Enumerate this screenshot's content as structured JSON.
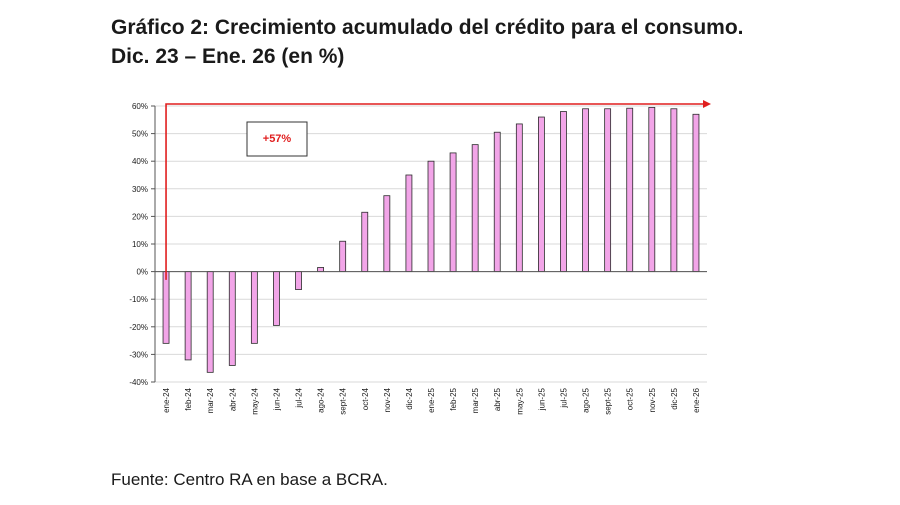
{
  "heading": {
    "line1": "Gráfico 2: Crecimiento acumulado del crédito para el consumo.",
    "line2": "Dic. 23 – Ene. 26 (en %)"
  },
  "source": "Fuente: Centro RA en base a BCRA.",
  "colors": {
    "bar_fill": "#f2a5e8",
    "bar_stroke": "#2b2b2b",
    "arrow": "#e01e1e",
    "grid": "#d9d9d9",
    "axis": "#555555"
  },
  "chart_data": {
    "type": "bar",
    "title": "",
    "xlabel": "",
    "ylabel": "",
    "ylim": [
      -40,
      60
    ],
    "yticks": [
      60,
      50,
      40,
      30,
      20,
      10,
      0,
      -10,
      -20,
      -30,
      -40
    ],
    "ytick_labels": [
      "60%",
      "50%",
      "40%",
      "30%",
      "20%",
      "10%",
      "0%",
      "-10%",
      "-20%",
      "-30%",
      "-40%"
    ],
    "grid": true,
    "categories": [
      "ene-24",
      "feb-24",
      "mar-24",
      "abr-24",
      "may-24",
      "jun-24",
      "jul-24",
      "ago-24",
      "sept-24",
      "oct-24",
      "nov-24",
      "dic-24",
      "ene-25",
      "feb-25",
      "mar-25",
      "abr-25",
      "may-25",
      "jun-25",
      "jul-25",
      "ago-25",
      "sept-25",
      "oct-25",
      "nov-25",
      "dic-25",
      "ene-26"
    ],
    "values": [
      -26,
      -32,
      -36.5,
      -34,
      -26,
      -19.5,
      -6.5,
      1.5,
      11,
      21.5,
      27.5,
      35,
      40,
      43,
      46,
      50.5,
      53.5,
      56,
      58,
      59,
      59,
      59.2,
      59.5,
      59,
      57
    ],
    "annotation": {
      "label": "+57%"
    }
  }
}
